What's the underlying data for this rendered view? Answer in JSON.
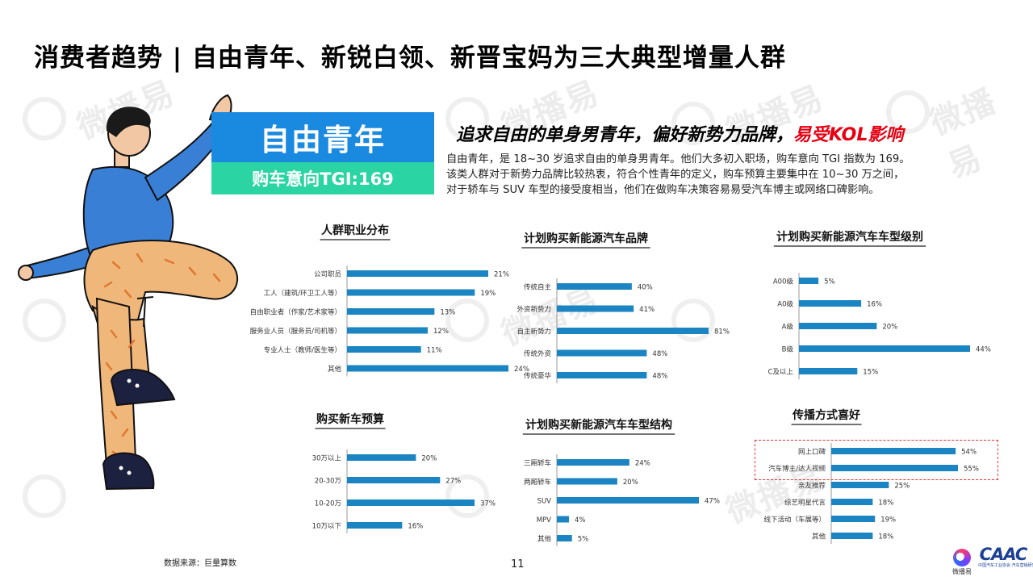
{
  "title": "消费者趋势 | 自由青年、新锐白领、新晋宝妈为三大典型增量人群",
  "persona": {
    "name": "自由青年",
    "tgi_label": "购车意向TGI:169"
  },
  "headline": {
    "main": "追求自由的单身男青年，偏好新势力品牌，",
    "highlight": "易受KOL影响"
  },
  "description": [
    "自由青年，是 18~30 岁追求自由的单身男青年。他们大多初入职场，购车意向 TGI 指数为 169。",
    "该类人群对于新势力品牌比较热衷，符合个性青年的定义，购车预算主要集中在 10~30 万之间，",
    "对于轿车与 SUV 车型的接受度相当，他们在做购车决策容易易受汽车博主或网络口碑影响。"
  ],
  "watermark_text": "微播易",
  "source": "数据来源：巨量算数",
  "page_number": "11",
  "logos": {
    "wbi": "微播易",
    "caac": "CAAC",
    "caac_sub": "中国汽车工业协会 汽车营销研究院"
  },
  "colors": {
    "bar": "#1b84c2",
    "persona_name_bg": "#1a8ae0",
    "persona_tgi_bg": "#2bd4a3",
    "highlight_red": "#e60012",
    "dashed_box": "#e63232"
  },
  "chart_data": [
    {
      "id": "occupation",
      "type": "bar",
      "orientation": "horizontal",
      "title": "人群职业分布",
      "categories": [
        "公司职员",
        "工人（建筑/环卫工人等）",
        "自由职业者（作家/艺术家等）",
        "服务业人员（服务员/司机等）",
        "专业人士（教师/医生等）",
        "其他"
      ],
      "values": [
        21,
        19,
        13,
        12,
        11,
        24
      ],
      "value_labels": [
        "21%",
        "19%",
        "13%",
        "12%",
        "11%",
        "24%"
      ],
      "unit": "%"
    },
    {
      "id": "nev-brand",
      "type": "bar",
      "orientation": "horizontal",
      "title": "计划购买新能源汽车品牌",
      "categories": [
        "传统自主",
        "外资新势力",
        "自主新势力",
        "传统外资",
        "传统豪华"
      ],
      "values": [
        40,
        41,
        81,
        48,
        48
      ],
      "value_labels": [
        "40%",
        "41%",
        "81%",
        "48%",
        "48%"
      ],
      "unit": "%"
    },
    {
      "id": "nev-class",
      "type": "bar",
      "orientation": "horizontal",
      "title": "计划购买新能源汽车车型级别",
      "categories": [
        "A00级",
        "A0级",
        "A级",
        "B级",
        "C及以上"
      ],
      "values": [
        5,
        16,
        20,
        44,
        15
      ],
      "value_labels": [
        "5%",
        "16%",
        "20%",
        "44%",
        "15%"
      ],
      "unit": "%"
    },
    {
      "id": "budget",
      "type": "bar",
      "orientation": "horizontal",
      "title": "购买新车预算",
      "categories": [
        "30万以上",
        "20-30万",
        "10-20万",
        "10万以下"
      ],
      "values": [
        20,
        27,
        37,
        16
      ],
      "value_labels": [
        "20%",
        "27%",
        "37%",
        "16%"
      ],
      "unit": "%"
    },
    {
      "id": "nev-structure",
      "type": "bar",
      "orientation": "horizontal",
      "title": "计划购买新能源汽车车型结构",
      "categories": [
        "三厢轿车",
        "两厢轿车",
        "SUV",
        "MPV",
        "其他"
      ],
      "values": [
        24,
        20,
        47,
        4,
        5
      ],
      "value_labels": [
        "24%",
        "20%",
        "47%",
        "4%",
        "5%"
      ],
      "unit": "%"
    },
    {
      "id": "channel",
      "type": "bar",
      "orientation": "horizontal",
      "title": "传播方式喜好",
      "categories": [
        "网上口碑",
        "汽车博主/达人视频",
        "亲友推荐",
        "综艺明星代言",
        "线下活动（车展等）",
        "其他"
      ],
      "values": [
        54,
        55,
        25,
        18,
        19,
        18
      ],
      "value_labels": [
        "54%",
        "55%",
        "25%",
        "18%",
        "19%",
        "18%"
      ],
      "unit": "%",
      "highlighted_categories": [
        "网上口碑",
        "汽车博主/达人视频"
      ]
    }
  ]
}
